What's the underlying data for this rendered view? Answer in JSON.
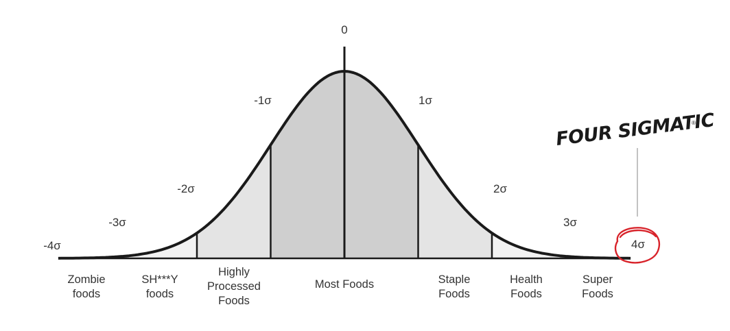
{
  "diagram": {
    "sigma_labels": [
      "-4σ",
      "-3σ",
      "-2σ",
      "-1σ",
      "0",
      "1σ",
      "2σ",
      "3σ",
      "4σ"
    ],
    "categories": [
      [
        "Zombie",
        "foods"
      ],
      [
        "SH***Y",
        "foods"
      ],
      [
        "Highly",
        "Processed",
        "Foods"
      ],
      [
        "Most Foods"
      ],
      [
        "Staple",
        "Foods"
      ],
      [
        "Health",
        "Foods"
      ],
      [
        "Super",
        "Foods"
      ]
    ],
    "brand": {
      "name": "FOUR SIGMATIC",
      "mark": "®"
    },
    "colors": {
      "outer": "#f2f2f2",
      "mid": "#e4e4e4",
      "center": "#cfcfcf",
      "stroke": "#1a1a1a",
      "highlight": "#d8232a"
    }
  }
}
